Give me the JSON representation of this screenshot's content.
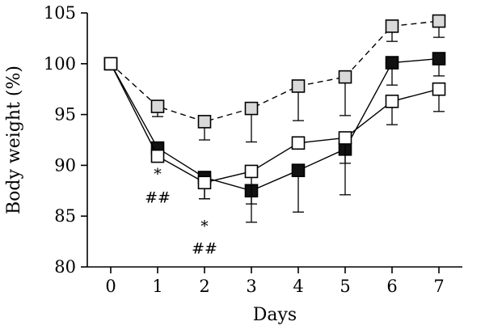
{
  "chart_data": {
    "type": "line",
    "xlabel": "Days",
    "ylabel": "Body weight (%)",
    "x": [
      0,
      1,
      2,
      3,
      4,
      5,
      6,
      7
    ],
    "xticks": [
      "0",
      "1",
      "2",
      "3",
      "4",
      "5",
      "6",
      "7"
    ],
    "ylim": [
      80,
      105
    ],
    "yticks": [
      "80",
      "85",
      "90",
      "95",
      "100",
      "105"
    ],
    "grid": false,
    "series": [
      {
        "marker_fill": "#d9d9d9",
        "line_style": "dashed",
        "values": [
          100,
          95.8,
          94.3,
          95.6,
          97.8,
          98.7,
          103.7,
          104.2
        ],
        "err": [
          0,
          1.0,
          1.8,
          3.3,
          3.4,
          3.8,
          1.5,
          1.6
        ],
        "err_dir": "down"
      },
      {
        "marker_fill": "#111111",
        "line_style": "solid",
        "values": [
          100,
          91.7,
          88.8,
          87.5,
          89.5,
          91.6,
          100.1,
          100.5
        ],
        "err": [
          0,
          0,
          2.1,
          3.1,
          4.1,
          4.5,
          2.2,
          1.7
        ],
        "err_dir": "down"
      },
      {
        "marker_fill": "#ffffff",
        "line_style": "solid",
        "values": [
          100,
          90.9,
          88.3,
          89.4,
          92.2,
          92.7,
          96.3,
          97.5
        ],
        "err": [
          0,
          0,
          1.6,
          3.2,
          0,
          2.5,
          2.3,
          2.2
        ],
        "err_dir": "down"
      }
    ],
    "annotations": [
      {
        "x": 1,
        "y": 89.1,
        "text": "*"
      },
      {
        "x": 1,
        "y": 86.8,
        "text": "##"
      },
      {
        "x": 2,
        "y": 84.0,
        "text": "*"
      },
      {
        "x": 2,
        "y": 81.8,
        "text": "##"
      }
    ]
  }
}
